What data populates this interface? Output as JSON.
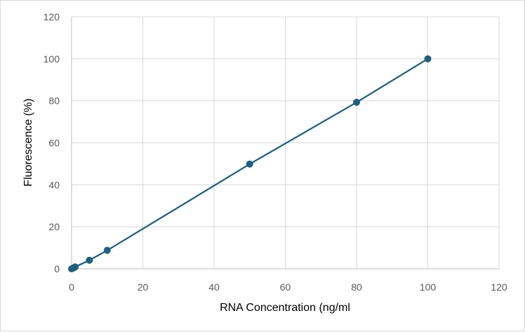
{
  "chart_data": {
    "type": "line",
    "title": "",
    "xlabel": "RNA Concentration (ng/ml",
    "ylabel": "Fluorescence (%)",
    "xlim": [
      0,
      120
    ],
    "ylim": [
      0,
      120
    ],
    "xticks": [
      0,
      20,
      40,
      60,
      80,
      100,
      120
    ],
    "yticks": [
      0,
      20,
      40,
      60,
      80,
      100,
      120
    ],
    "grid": true,
    "legend": "none",
    "line_color": "#1f5f7f",
    "grid_color": "#d9d9d9",
    "series": [
      {
        "x": [
          0,
          0.5,
          1,
          5,
          10,
          50,
          80,
          100
        ],
        "y": [
          0,
          0.4,
          0.9,
          4.1,
          8.8,
          49.9,
          79.3,
          100
        ]
      }
    ]
  }
}
